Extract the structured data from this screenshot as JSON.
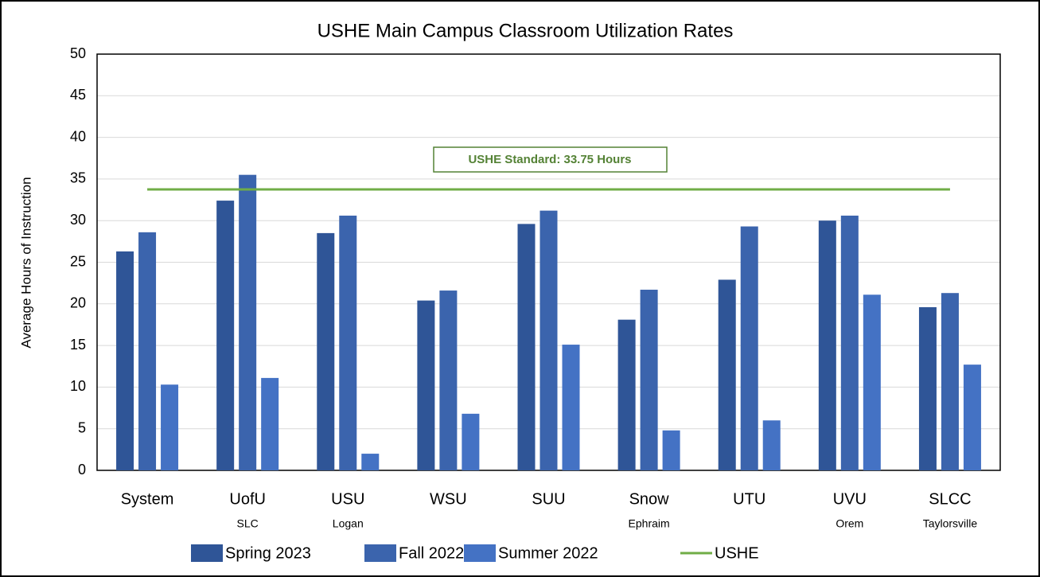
{
  "chart_data": {
    "type": "bar",
    "title": "USHE Main Campus Classroom Utilization Rates",
    "y_label": "Average Hours of Instruction",
    "categories": [
      "System",
      "UofU",
      "USU",
      "WSU",
      "SUU",
      "Snow",
      "UTU",
      "UVU",
      "SLCC"
    ],
    "sublabels": [
      null,
      "SLC",
      "Logan",
      null,
      null,
      "Ephraim",
      null,
      "Orem",
      "Taylorsville"
    ],
    "series": [
      {
        "name": "Spring 2023",
        "color": "#2f5597",
        "values": [
          26.3,
          32.4,
          28.5,
          20.4,
          29.6,
          18.1,
          22.9,
          30.0,
          19.6
        ]
      },
      {
        "name": "Fall 2022",
        "color": "#3b64ad",
        "values": [
          28.6,
          35.5,
          30.6,
          21.6,
          31.2,
          21.7,
          29.3,
          30.6,
          21.3
        ]
      },
      {
        "name": "Summer 2022",
        "color": "#4472c4",
        "values": [
          10.3,
          11.1,
          2.0,
          6.8,
          15.1,
          4.8,
          6.0,
          21.1,
          12.7
        ]
      }
    ],
    "reference_line": {
      "name": "USHE",
      "value": 33.75,
      "color": "#70ad47"
    },
    "annotation": "USHE Standard: 33.75 Hours",
    "ylim": [
      0,
      50
    ],
    "yticks": [
      0,
      5,
      10,
      15,
      20,
      25,
      30,
      35,
      40,
      45,
      50
    ],
    "grid": true
  }
}
